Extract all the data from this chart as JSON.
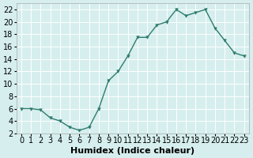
{
  "x": [
    0,
    1,
    2,
    3,
    4,
    5,
    6,
    7,
    8,
    9,
    10,
    11,
    12,
    13,
    14,
    15,
    16,
    17,
    18,
    19,
    20,
    21,
    22,
    23
  ],
  "y": [
    6,
    6,
    5.8,
    4.5,
    4,
    3,
    2.5,
    3,
    6,
    10.5,
    12,
    14.5,
    17.5,
    17.5,
    19.5,
    20,
    22,
    21,
    21.5,
    22,
    19,
    17,
    15,
    14.5
  ],
  "line_color": "#2e7d6e",
  "marker_color": "#2e7d6e",
  "bg_color": "#d6eeee",
  "grid_color": "#ffffff",
  "xlabel": "Humidex (Indice chaleur)",
  "xlim": [
    -0.5,
    23.5
  ],
  "ylim": [
    2,
    23
  ],
  "yticks": [
    2,
    4,
    6,
    8,
    10,
    12,
    14,
    16,
    18,
    20,
    22
  ],
  "xticks": [
    0,
    1,
    2,
    3,
    4,
    5,
    6,
    7,
    8,
    9,
    10,
    11,
    12,
    13,
    14,
    15,
    16,
    17,
    18,
    19,
    20,
    21,
    22,
    23
  ],
  "xlabel_fontsize": 8,
  "tick_fontsize": 7
}
